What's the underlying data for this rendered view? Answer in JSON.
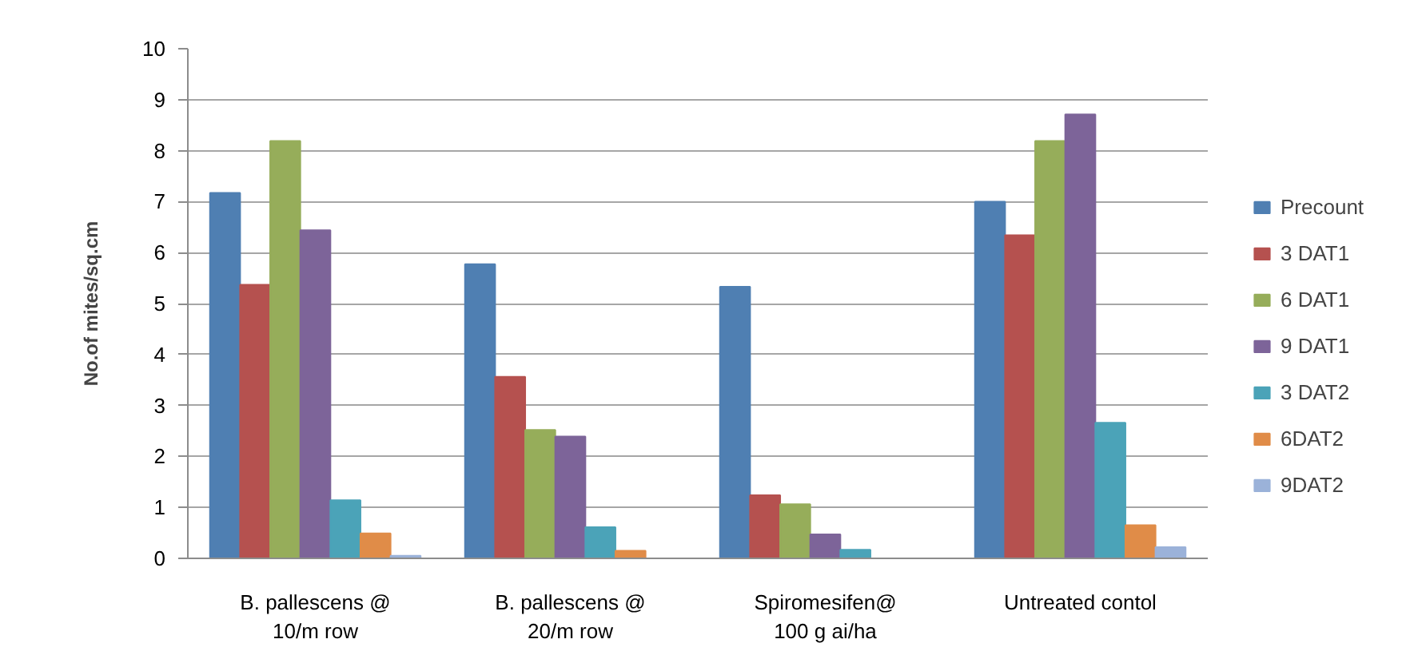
{
  "chart_data": {
    "type": "bar",
    "ylabel": "No.of mites/sq.cm",
    "categories": [
      "B. pallescens @ 10/m row",
      "B. pallescens @ 20/m row",
      "Spiromesifen@ 100 g ai/ha",
      "Untreated contol"
    ],
    "series": [
      {
        "name": "Precount",
        "color": "#4f7fb2",
        "values": [
          7.17,
          5.77,
          5.33,
          7.0
        ]
      },
      {
        "name": "3 DAT1",
        "color": "#b5514f",
        "values": [
          5.37,
          3.56,
          1.24,
          6.34
        ]
      },
      {
        "name": "6 DAT1",
        "color": "#96ad5a",
        "values": [
          8.19,
          2.52,
          1.06,
          8.19
        ]
      },
      {
        "name": "9 DAT1",
        "color": "#7d6499",
        "values": [
          6.44,
          2.39,
          0.47,
          8.71
        ]
      },
      {
        "name": "3 DAT2",
        "color": "#4ba3b8",
        "values": [
          1.14,
          0.61,
          0.17,
          2.66
        ]
      },
      {
        "name": "6DAT2",
        "color": "#e08c48",
        "values": [
          0.49,
          0.15,
          0,
          0.65
        ]
      },
      {
        "name": "9DAT2",
        "color": "#9bb2d9",
        "values": [
          0.05,
          0,
          0,
          0.22
        ]
      }
    ],
    "ylim": [
      0,
      10
    ],
    "yticks": [
      0,
      1,
      2,
      3,
      4,
      5,
      6,
      7,
      8,
      9,
      10
    ],
    "grid": "y",
    "legend": "right"
  }
}
